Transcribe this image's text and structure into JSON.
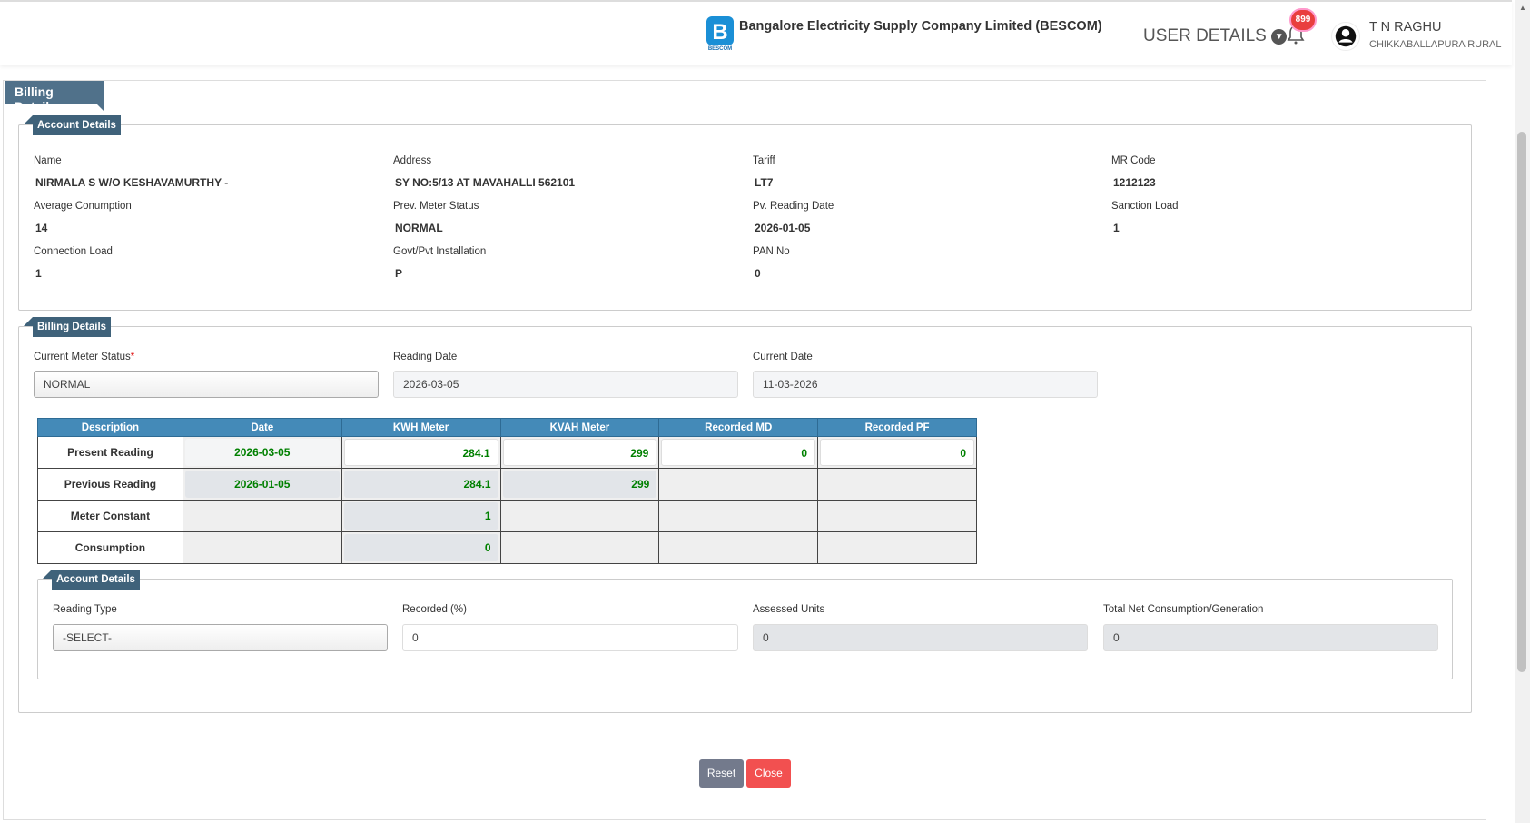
{
  "header": {
    "company": "Bangalore Electricity Supply Company Limited (BESCOM)",
    "logo_text": "BESCOM",
    "user_details": "USER DETAILS",
    "notifications": "899",
    "user_name": "T N RAGHU",
    "user_location": "CHIKKABALLAPURA RURAL"
  },
  "page": {
    "title": "Billing Details"
  },
  "account": {
    "legend": "Account Details",
    "fields": [
      {
        "label": "Name",
        "value": "NIRMALA S  W/O  KESHAVAMURTHY -"
      },
      {
        "label": "Address",
        "value": "SY NO:5/13 AT MAVAHALLI 562101"
      },
      {
        "label": "Tariff",
        "value": "LT7"
      },
      {
        "label": "MR Code",
        "value": "1212123"
      },
      {
        "label": "Average Conumption",
        "value": "14"
      },
      {
        "label": "Prev. Meter Status",
        "value": "NORMAL"
      },
      {
        "label": "Pv. Reading Date",
        "value": "2026-01-05"
      },
      {
        "label": "Sanction Load",
        "value": "1"
      },
      {
        "label": "Connection Load",
        "value": "1"
      },
      {
        "label": "Govt/Pvt Installation",
        "value": "P"
      },
      {
        "label": "PAN No",
        "value": "0"
      }
    ]
  },
  "billing": {
    "legend": "Billing Details",
    "meter_status_label": "Current Meter Status",
    "required_mark": "*",
    "meter_status": "NORMAL",
    "reading_date_label": "Reading Date",
    "reading_date": "2026-03-05",
    "current_date_label": "Current Date",
    "current_date": "11-03-2026",
    "table": {
      "headers": [
        "Description",
        "Date",
        "KWH Meter",
        "KVAH Meter",
        "Recorded MD",
        "Recorded PF"
      ],
      "rows": [
        [
          "Present Reading",
          "2026-03-05",
          "284.1",
          "299",
          "0",
          "0"
        ],
        [
          "Previous Reading",
          "2026-01-05",
          "284.1",
          "299",
          "",
          ""
        ],
        [
          "Meter Constant",
          "",
          "1",
          "",
          "",
          ""
        ],
        [
          "Consumption",
          "",
          "0",
          "",
          "",
          ""
        ]
      ]
    }
  },
  "account2": {
    "legend": "Account Details",
    "reading_type_label": "Reading Type",
    "reading_type": "-SELECT-",
    "recorded_label": "Recorded (%)",
    "recorded": "0",
    "assessed_label": "Assessed Units",
    "assessed": "0",
    "total_label": "Total Net Consumption/Generation",
    "total": "0"
  },
  "buttons": {
    "reset": "Reset",
    "close": "Close"
  },
  "colors": {
    "header_blue": "#448ab8",
    "legend": "#3f627a",
    "value_green": "#008000",
    "reset": "#737a8c",
    "close": "#f25050"
  }
}
